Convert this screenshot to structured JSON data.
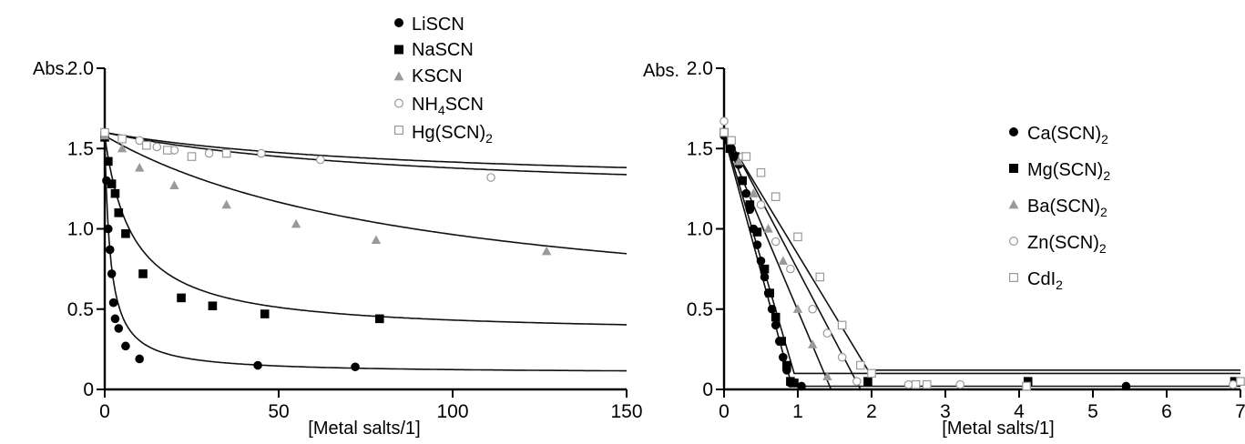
{
  "chart_data": [
    {
      "type": "scatter",
      "title": "",
      "ylabel": "Abs.",
      "xlabel": "[Metal salts/1]",
      "xlim": [
        0,
        150
      ],
      "ylim": [
        0,
        2.0
      ],
      "xticks": [
        "0",
        "50",
        "100",
        "150"
      ],
      "yticks": [
        "0",
        "0.5",
        "1.0",
        "1.5",
        "2.0"
      ],
      "legend_position": "top-center",
      "grid": false,
      "series": [
        {
          "name": "LiSCN",
          "marker": "circle",
          "color": "#000000",
          "fit": {
            "type": "hyperbolic",
            "a0": 1.58,
            "delta": 1.48,
            "k": 1.6
          },
          "points": [
            [
              0,
              1.58
            ],
            [
              0.5,
              1.3
            ],
            [
              1,
              1.0
            ],
            [
              1.5,
              0.87
            ],
            [
              2,
              0.72
            ],
            [
              2.5,
              0.54
            ],
            [
              3,
              0.44
            ],
            [
              4,
              0.38
            ],
            [
              6,
              0.27
            ],
            [
              10,
              0.19
            ],
            [
              44,
              0.15
            ],
            [
              72,
              0.14
            ]
          ]
        },
        {
          "name": "NaSCN",
          "marker": "square",
          "color": "#000000",
          "fit": {
            "type": "hyperbolic",
            "a0": 1.58,
            "delta": 1.24,
            "k": 8
          },
          "points": [
            [
              0,
              1.57
            ],
            [
              1,
              1.42
            ],
            [
              2,
              1.28
            ],
            [
              3,
              1.22
            ],
            [
              4,
              1.1
            ],
            [
              6,
              0.97
            ],
            [
              11,
              0.72
            ],
            [
              22,
              0.57
            ],
            [
              31,
              0.52
            ],
            [
              46,
              0.47
            ],
            [
              79,
              0.44
            ]
          ]
        },
        {
          "name": "KSCN",
          "marker": "triangle",
          "color": "#9a9a9a",
          "fit": {
            "type": "hyperbolic",
            "a0": 1.58,
            "delta": 1.2,
            "k": 95
          },
          "points": [
            [
              0,
              1.58
            ],
            [
              5,
              1.5
            ],
            [
              10,
              1.38
            ],
            [
              20,
              1.27
            ],
            [
              35,
              1.15
            ],
            [
              55,
              1.03
            ],
            [
              78,
              0.93
            ],
            [
              127,
              0.86
            ]
          ]
        },
        {
          "name": "NH4SCN",
          "marker": "circle-open",
          "color": "#9a9a9a",
          "fit": {
            "type": "hyperbolic",
            "a0": 1.6,
            "delta": 0.42,
            "k": 90
          },
          "points": [
            [
              0,
              1.6
            ],
            [
              10,
              1.55
            ],
            [
              15,
              1.51
            ],
            [
              20,
              1.49
            ],
            [
              30,
              1.47
            ],
            [
              45,
              1.47
            ],
            [
              62,
              1.43
            ],
            [
              111,
              1.32
            ]
          ]
        },
        {
          "name": "Hg(SCN)2",
          "marker": "square-open",
          "color": "#9a9a9a",
          "fit": {
            "type": "hyperbolic",
            "a0": 1.6,
            "delta": 0.35,
            "k": 90
          },
          "points": [
            [
              0,
              1.6
            ],
            [
              5,
              1.56
            ],
            [
              12,
              1.52
            ],
            [
              18,
              1.49
            ],
            [
              25,
              1.45
            ],
            [
              35,
              1.47
            ]
          ]
        }
      ]
    },
    {
      "type": "scatter",
      "title": "",
      "ylabel": "Abs.",
      "xlabel": "[Metal salts/1]",
      "xlim": [
        0,
        7
      ],
      "ylim": [
        0,
        2.0
      ],
      "xticks": [
        "0",
        "1",
        "2",
        "3",
        "4",
        "5",
        "6",
        "7"
      ],
      "yticks": [
        "0",
        "0.5",
        "1.0",
        "1.5",
        "2.0"
      ],
      "legend_position": "right",
      "grid": false,
      "series": [
        {
          "name": "Ca(SCN)2",
          "marker": "circle",
          "color": "#000000",
          "fit": {
            "type": "segmented",
            "points": [
              [
                0,
                1.58
              ],
              [
                0.92,
                0.02
              ],
              [
                7,
                0.02
              ]
            ]
          },
          "points": [
            [
              0,
              1.58
            ],
            [
              0.05,
              1.55
            ],
            [
              0.1,
              1.5
            ],
            [
              0.15,
              1.45
            ],
            [
              0.2,
              1.4
            ],
            [
              0.25,
              1.3
            ],
            [
              0.3,
              1.22
            ],
            [
              0.35,
              1.12
            ],
            [
              0.4,
              1.0
            ],
            [
              0.45,
              0.9
            ],
            [
              0.5,
              0.8
            ],
            [
              0.55,
              0.7
            ],
            [
              0.6,
              0.6
            ],
            [
              0.65,
              0.5
            ],
            [
              0.7,
              0.4
            ],
            [
              0.75,
              0.3
            ],
            [
              0.8,
              0.2
            ],
            [
              0.85,
              0.12
            ],
            [
              0.9,
              0.04
            ],
            [
              1.05,
              0.02
            ],
            [
              5.45,
              0.02
            ]
          ]
        },
        {
          "name": "Mg(SCN)2",
          "marker": "square",
          "color": "#000000",
          "fit": {
            "type": "segmented",
            "points": [
              [
                0,
                1.6
              ],
              [
                0.95,
                0.1
              ],
              [
                7,
                0.1
              ]
            ]
          },
          "points": [
            [
              0,
              1.6
            ],
            [
              0.08,
              1.5
            ],
            [
              0.15,
              1.45
            ],
            [
              0.25,
              1.3
            ],
            [
              0.35,
              1.15
            ],
            [
              0.45,
              0.98
            ],
            [
              0.55,
              0.75
            ],
            [
              0.62,
              0.6
            ],
            [
              0.7,
              0.45
            ],
            [
              0.78,
              0.3
            ],
            [
              0.85,
              0.15
            ],
            [
              0.9,
              0.05
            ],
            [
              0.95,
              0.04
            ],
            [
              1.95,
              0.05
            ],
            [
              4.12,
              0.05
            ],
            [
              6.92,
              0.05
            ]
          ]
        },
        {
          "name": "Ba(SCN)2",
          "marker": "triangle",
          "color": "#9a9a9a",
          "fit": {
            "type": "segmented",
            "points": [
              [
                0,
                1.58
              ],
              [
                1.45,
                0.0
              ]
            ]
          },
          "points": [
            [
              0,
              1.6
            ],
            [
              0.2,
              1.42
            ],
            [
              0.4,
              1.22
            ],
            [
              0.6,
              1.0
            ],
            [
              0.8,
              0.8
            ],
            [
              1.0,
              0.5
            ],
            [
              1.2,
              0.28
            ],
            [
              1.4,
              0.08
            ]
          ]
        },
        {
          "name": "Zn(SCN)2",
          "marker": "circle-open",
          "color": "#9a9a9a",
          "fit": {
            "type": "segmented",
            "points": [
              [
                0,
                1.62
              ],
              [
                1.85,
                0.0
              ]
            ]
          },
          "points": [
            [
              0,
              1.67
            ],
            [
              0.25,
              1.45
            ],
            [
              0.5,
              1.15
            ],
            [
              0.7,
              0.92
            ],
            [
              0.9,
              0.75
            ],
            [
              1.2,
              0.5
            ],
            [
              1.4,
              0.35
            ],
            [
              1.6,
              0.2
            ],
            [
              1.8,
              0.05
            ],
            [
              2.5,
              0.03
            ],
            [
              3.2,
              0.03
            ],
            [
              6.9,
              0.03
            ]
          ]
        },
        {
          "name": "CdI2",
          "marker": "square-open",
          "color": "#9a9a9a",
          "fit": {
            "type": "segmented",
            "points": [
              [
                0,
                1.6
              ],
              [
                1.95,
                0.12
              ],
              [
                7,
                0.12
              ]
            ]
          },
          "points": [
            [
              0,
              1.6
            ],
            [
              0.1,
              1.55
            ],
            [
              0.3,
              1.45
            ],
            [
              0.5,
              1.35
            ],
            [
              0.7,
              1.2
            ],
            [
              1.0,
              0.95
            ],
            [
              1.3,
              0.7
            ],
            [
              1.6,
              0.4
            ],
            [
              1.85,
              0.15
            ],
            [
              2.0,
              0.1
            ],
            [
              2.6,
              0.03
            ],
            [
              2.75,
              0.03
            ],
            [
              4.1,
              0.02
            ],
            [
              7.0,
              0.05
            ]
          ]
        }
      ]
    }
  ]
}
